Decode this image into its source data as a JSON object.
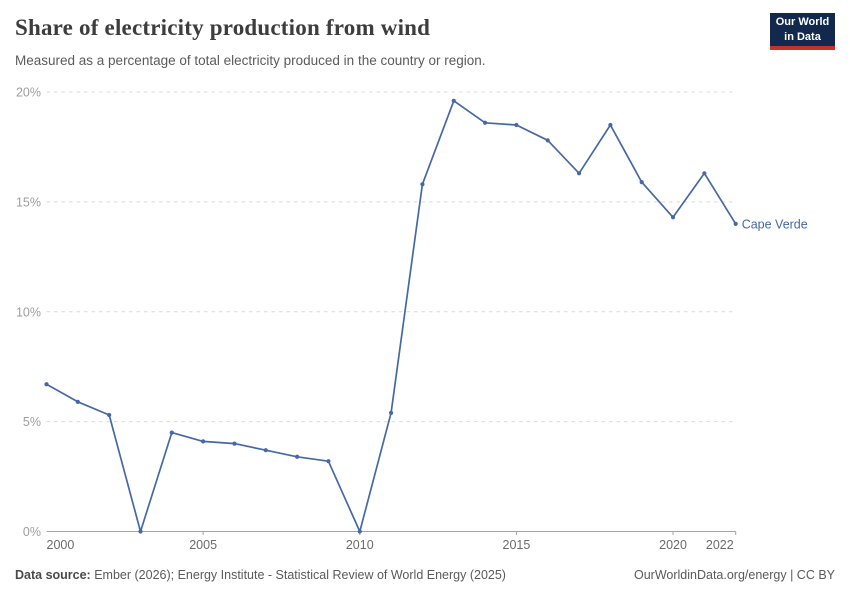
{
  "header": {
    "title": "Share of electricity production from wind",
    "subtitle": "Measured as a percentage of total electricity produced in the country or region.",
    "logo": {
      "line1": "Our World",
      "line2": "in Data"
    }
  },
  "chart_data": {
    "type": "line",
    "title": "Share of electricity production from wind",
    "entity": "Cape Verde",
    "xlabel": "",
    "ylabel": "",
    "x_range": [
      2000,
      2022
    ],
    "ylim": [
      0,
      20
    ],
    "yticks": [
      0,
      5,
      10,
      15,
      20
    ],
    "ytick_suffix": "%",
    "xticks": [
      2000,
      2005,
      2010,
      2015,
      2020,
      2022
    ],
    "grid": "horizontal-dashed",
    "legend": "end-of-line-label",
    "series": [
      {
        "name": "Cape Verde",
        "color": "#4668a5",
        "x": [
          2000,
          2001,
          2002,
          2003,
          2004,
          2005,
          2006,
          2007,
          2008,
          2009,
          2010,
          2011,
          2012,
          2013,
          2014,
          2015,
          2016,
          2017,
          2018,
          2019,
          2020,
          2021,
          2022
        ],
        "values": [
          6.7,
          5.9,
          5.3,
          0,
          4.5,
          4.1,
          4.0,
          3.7,
          3.4,
          3.2,
          0,
          5.4,
          15.8,
          19.6,
          18.6,
          18.5,
          17.8,
          16.3,
          18.5,
          15.9,
          14.3,
          16.3,
          14.0
        ]
      }
    ]
  },
  "footer": {
    "source_label": "Data source:",
    "source_text": " Ember (2026); Energy Institute - Statistical Review of World Energy (2025)",
    "credit": "OurWorldinData.org/energy | CC BY"
  },
  "colors": {
    "line": "#4668a5",
    "grid": "#d9d9d9",
    "axis": "#a5a5a5",
    "ytick_label": "#9e9e9e",
    "xtick_label": "#6b6b6b",
    "logo_bg": "#12294d",
    "logo_accent": "#c7302b"
  }
}
